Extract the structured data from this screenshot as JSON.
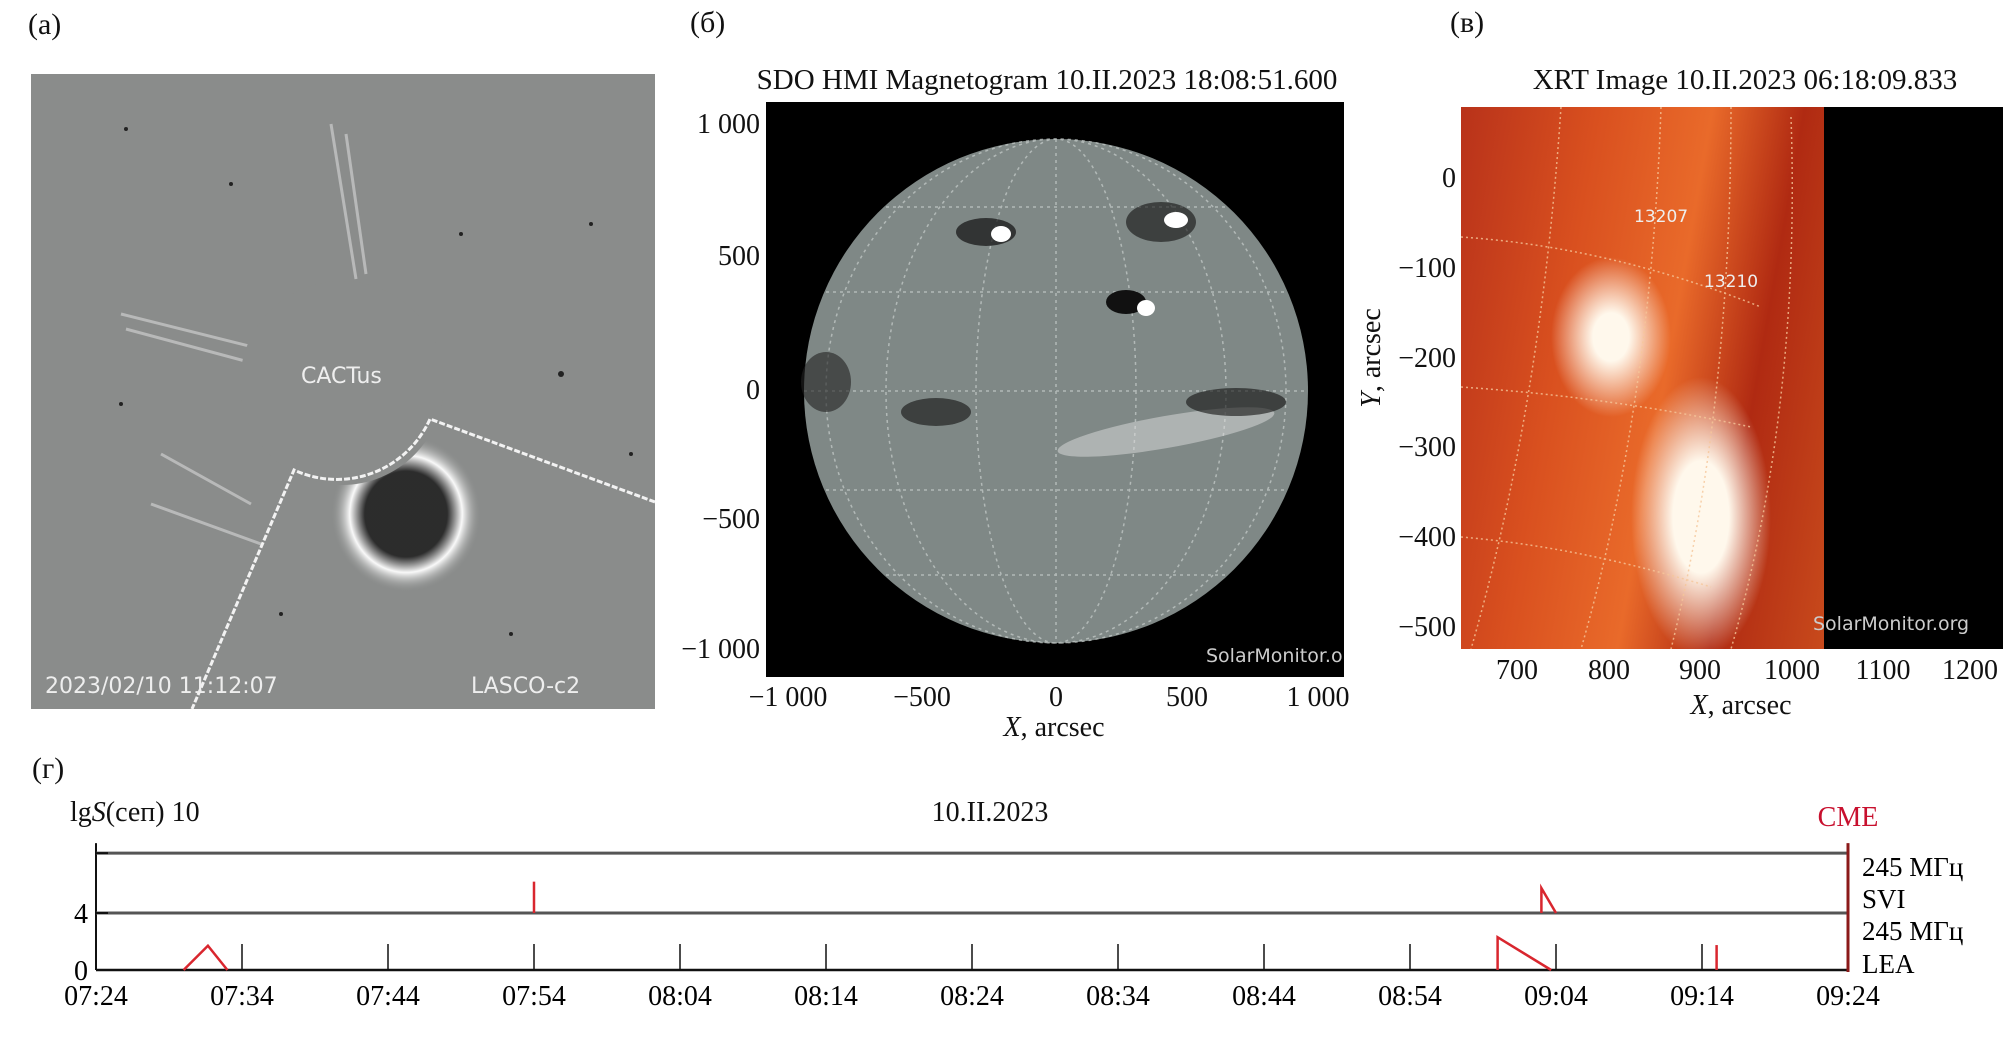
{
  "panel_a": {
    "label": "(a)",
    "center_text": "CACTus",
    "timestamp": "2023/02/10 11:12:07",
    "instrument": "LASCO-c2"
  },
  "panel_b": {
    "label": "(б)",
    "title": "SDO HMI Magnetogram 10.II.2023 18:08:51.600",
    "y_ticks": [
      "1 000",
      "500",
      "0",
      "−500",
      "−1 000"
    ],
    "x_ticks": [
      "−1 000",
      "−500",
      "0",
      "500",
      "1 000"
    ],
    "xlabel_var": "X",
    "xlabel_unit": ", arcsec",
    "watermark": "SolarMonitor.org"
  },
  "panel_c": {
    "label": "(в)",
    "title": "XRT Image 10.II.2023 06:18:09.833",
    "y_ticks": [
      "0",
      "−100",
      "−200",
      "−300",
      "−400",
      "−500"
    ],
    "x_ticks": [
      "700",
      "800",
      "900",
      "1000",
      "1100",
      "1200"
    ],
    "xlabel_var": "X",
    "xlabel_unit": ", arcsec",
    "ylabel_var": "Y",
    "ylabel_unit": ", arcsec",
    "region_labels": [
      "13207",
      "13210"
    ],
    "watermark": "SolarMonitor.org",
    "colors": {
      "dark": "#a8200f",
      "mid": "#e2561c",
      "bright": "#fff4e0"
    }
  },
  "panel_d": {
    "label": "(г)",
    "chart_data": {
      "type": "line",
      "title": "10.II.2023",
      "ylabel_prefix": "lg",
      "ylabel_var": "S",
      "ylabel_suffix": "(сеп)",
      "y_ticks": [
        "0",
        "4",
        "10"
      ],
      "x_ticks": [
        "07:24",
        "07:34",
        "07:44",
        "07:54",
        "08:04",
        "08:14",
        "08:24",
        "08:34",
        "08:44",
        "08:54",
        "09:04",
        "09:14",
        "09:24"
      ],
      "xlim": [
        "07:24",
        "09:24"
      ],
      "band_lines": [
        4,
        8.2
      ],
      "bands": [
        {
          "freq": "245 МГц",
          "station": "SVI"
        },
        {
          "freq": "245 МГц",
          "station": "LEA"
        }
      ],
      "series": [
        {
          "band": "LEA",
          "points": [
            [
              "07:30:00",
              0
            ],
            [
              "07:31:40",
              1.7
            ],
            [
              "07:33:00",
              0
            ]
          ]
        },
        {
          "band": "SVI",
          "points": [
            [
              "07:54:00",
              4
            ],
            [
              "07:54:00",
              6.2
            ]
          ]
        },
        {
          "band": "LEA",
          "points": [
            [
              "09:00:00",
              0
            ],
            [
              "09:00:00",
              2.3
            ],
            [
              "09:03:40",
              0
            ]
          ]
        },
        {
          "band": "SVI",
          "points": [
            [
              "09:03:00",
              4
            ],
            [
              "09:03:00",
              5.75
            ],
            [
              "09:04:00",
              4
            ]
          ]
        },
        {
          "band": "LEA",
          "points": [
            [
              "09:15:00",
              0
            ],
            [
              "09:15:00",
              1.75
            ]
          ]
        }
      ],
      "cme": {
        "label": "CME",
        "time": "09:24"
      },
      "series_color": "#d9262e",
      "cme_color": "#c8102e",
      "grid": false
    }
  }
}
